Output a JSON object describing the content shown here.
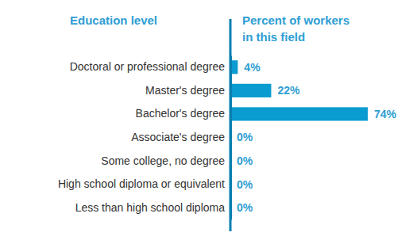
{
  "chart_data": {
    "type": "bar",
    "orientation": "horizontal",
    "y_label": "Education level",
    "x_label": "Percent of workers in this field",
    "categories": [
      "Doctoral or professional degree",
      "Master's degree",
      "Bachelor's degree",
      "Associate's degree",
      "Some college, no degree",
      "High school diploma or equivalent",
      "Less than high school diploma"
    ],
    "values": [
      4,
      22,
      74,
      0,
      0,
      0,
      0
    ],
    "value_labels": [
      "4%",
      "22%",
      "74%",
      "0%",
      "0%",
      "0%",
      "0%"
    ],
    "data_labels": true,
    "tick_labels": "y",
    "xlim": [
      0,
      74
    ],
    "color": "#0a9bd0",
    "grid": false
  }
}
